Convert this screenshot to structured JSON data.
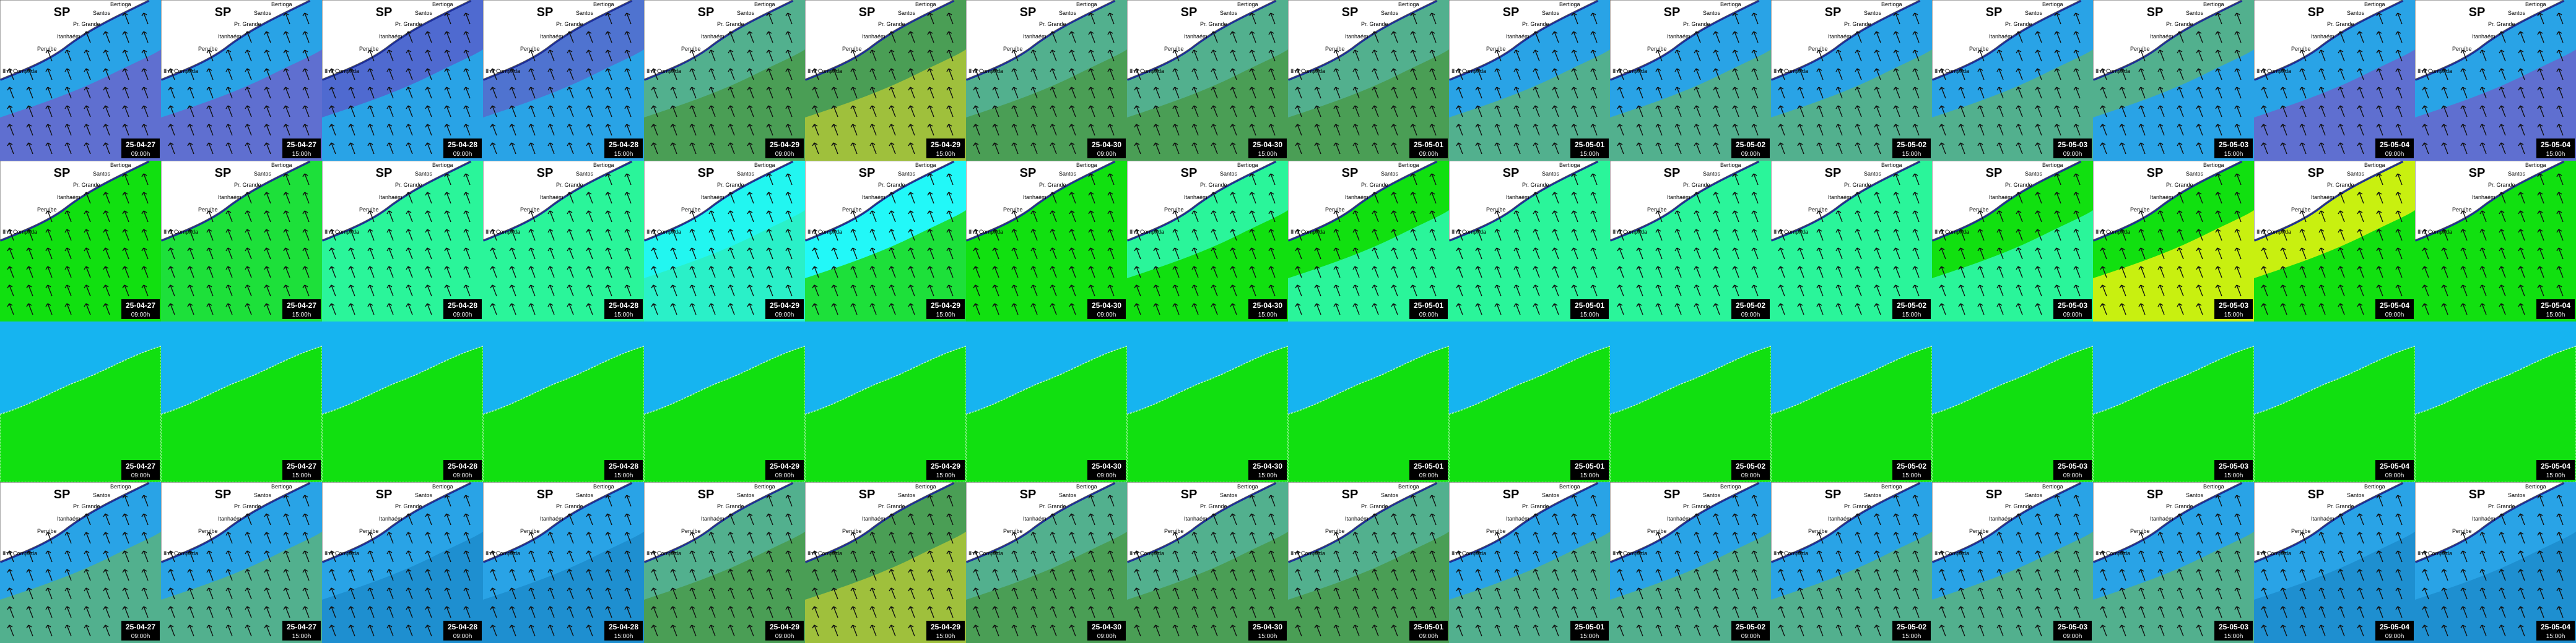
{
  "title": "SP",
  "places": [
    "Bertioga",
    "Santos",
    "Pr. Grande",
    "Itanhaém",
    "Peruíbe",
    "Ilha Comprida"
  ],
  "columns": [
    {
      "date": "25-04-27",
      "time": "09:00h"
    },
    {
      "date": "25-04-27",
      "time": "15:00h"
    },
    {
      "date": "25-04-28",
      "time": "09:00h"
    },
    {
      "date": "25-04-28",
      "time": "15:00h"
    },
    {
      "date": "25-04-29",
      "time": "09:00h"
    },
    {
      "date": "25-04-29",
      "time": "15:00h"
    },
    {
      "date": "25-04-30",
      "time": "09:00h"
    },
    {
      "date": "25-04-30",
      "time": "15:00h"
    },
    {
      "date": "25-05-01",
      "time": "09:00h"
    },
    {
      "date": "25-05-01",
      "time": "15:00h"
    },
    {
      "date": "25-05-02",
      "time": "09:00h"
    },
    {
      "date": "25-05-02",
      "time": "15:00h"
    },
    {
      "date": "25-05-03",
      "time": "09:00h"
    },
    {
      "date": "25-05-03",
      "time": "15:00h"
    },
    {
      "date": "25-05-04",
      "time": "09:00h"
    },
    {
      "date": "25-05-04",
      "time": "15:00h"
    }
  ],
  "rows": [
    {
      "show_labels": true,
      "arrows": true,
      "fills": [
        [
          "#29a3e6",
          "#5f6fd0"
        ],
        [
          "#29a3e6",
          "#5f6fd0"
        ],
        [
          "#4f6ad0",
          "#29a3e6"
        ],
        [
          "#4f73d0",
          "#29a3e6"
        ],
        [
          "#52b08e",
          "#4a9e55"
        ],
        [
          "#4a9e55",
          "#9fc03c"
        ],
        [
          "#52b08e",
          "#4a9e55"
        ],
        [
          "#52b08e",
          "#4a9e55"
        ],
        [
          "#52b08e",
          "#4a9e55"
        ],
        [
          "#29a3e6",
          "#52b08e"
        ],
        [
          "#29a3e6",
          "#52b08e"
        ],
        [
          "#29a3e6",
          "#52b08e"
        ],
        [
          "#29a3e6",
          "#52b08e"
        ],
        [
          "#52b08e",
          "#29a3e6"
        ],
        [
          "#29a3e6",
          "#5f6fd0"
        ],
        [
          "#29a3e6",
          "#5f6fd0"
        ]
      ]
    },
    {
      "show_labels": true,
      "arrows": true,
      "fills": [
        [
          "#11e010",
          "#11e010"
        ],
        [
          "#1de03a",
          "#1de03a"
        ],
        [
          "#2af59a",
          "#2af59a"
        ],
        [
          "#2af59a",
          "#2af59a"
        ],
        [
          "#22f6f0",
          "#2af0c8"
        ],
        [
          "#22f8f8",
          "#1de03a"
        ],
        [
          "#11e010",
          "#11e010"
        ],
        [
          "#2af59a",
          "#11e010"
        ],
        [
          "#11e010",
          "#2af59a"
        ],
        [
          "#2af59a",
          "#2af59a"
        ],
        [
          "#2af59a",
          "#2af59a"
        ],
        [
          "#2af59a",
          "#2af59a"
        ],
        [
          "#11e010",
          "#2af59a"
        ],
        [
          "#11e010",
          "#c8f010"
        ],
        [
          "#c8f010",
          "#11e010"
        ],
        [
          "#11e010",
          "#11e010"
        ]
      ]
    },
    {
      "show_labels": false,
      "arrows": false,
      "fills": [
        [
          "#16b4f0",
          "#11e010"
        ],
        [
          "#16b4f0",
          "#11e010"
        ],
        [
          "#16b4f0",
          "#11e010"
        ],
        [
          "#16b4f0",
          "#11e010"
        ],
        [
          "#16b4f0",
          "#11e010"
        ],
        [
          "#16b4f0",
          "#11e010"
        ],
        [
          "#16b4f0",
          "#11e010"
        ],
        [
          "#16b4f0",
          "#11e010"
        ],
        [
          "#16b4f0",
          "#11e010"
        ],
        [
          "#16b4f0",
          "#11e010"
        ],
        [
          "#16b4f0",
          "#11e010"
        ],
        [
          "#16b4f0",
          "#11e010"
        ],
        [
          "#16b4f0",
          "#11e010"
        ],
        [
          "#16b4f0",
          "#11e010"
        ],
        [
          "#16b4f0",
          "#11e010"
        ],
        [
          "#16b4f0",
          "#11e010"
        ]
      ]
    },
    {
      "show_labels": true,
      "arrows": true,
      "fills": [
        [
          "#29a3e6",
          "#52b08e"
        ],
        [
          "#29a3e6",
          "#52b08e"
        ],
        [
          "#29a3e6",
          "#1e8fd0"
        ],
        [
          "#29a3e6",
          "#1e8fd0"
        ],
        [
          "#52b08e",
          "#4a9e55"
        ],
        [
          "#4a9e55",
          "#9fc03c"
        ],
        [
          "#52b08e",
          "#4a9e55"
        ],
        [
          "#52b08e",
          "#4a9e55"
        ],
        [
          "#52b08e",
          "#4a9e55"
        ],
        [
          "#29a3e6",
          "#52b08e"
        ],
        [
          "#29a3e6",
          "#52b08e"
        ],
        [
          "#29a3e6",
          "#52b08e"
        ],
        [
          "#29a3e6",
          "#52b08e"
        ],
        [
          "#29a3e6",
          "#52b08e"
        ],
        [
          "#29a3e6",
          "#1e8fd0"
        ],
        [
          "#29a3e6",
          "#1e8fd0"
        ]
      ]
    }
  ]
}
